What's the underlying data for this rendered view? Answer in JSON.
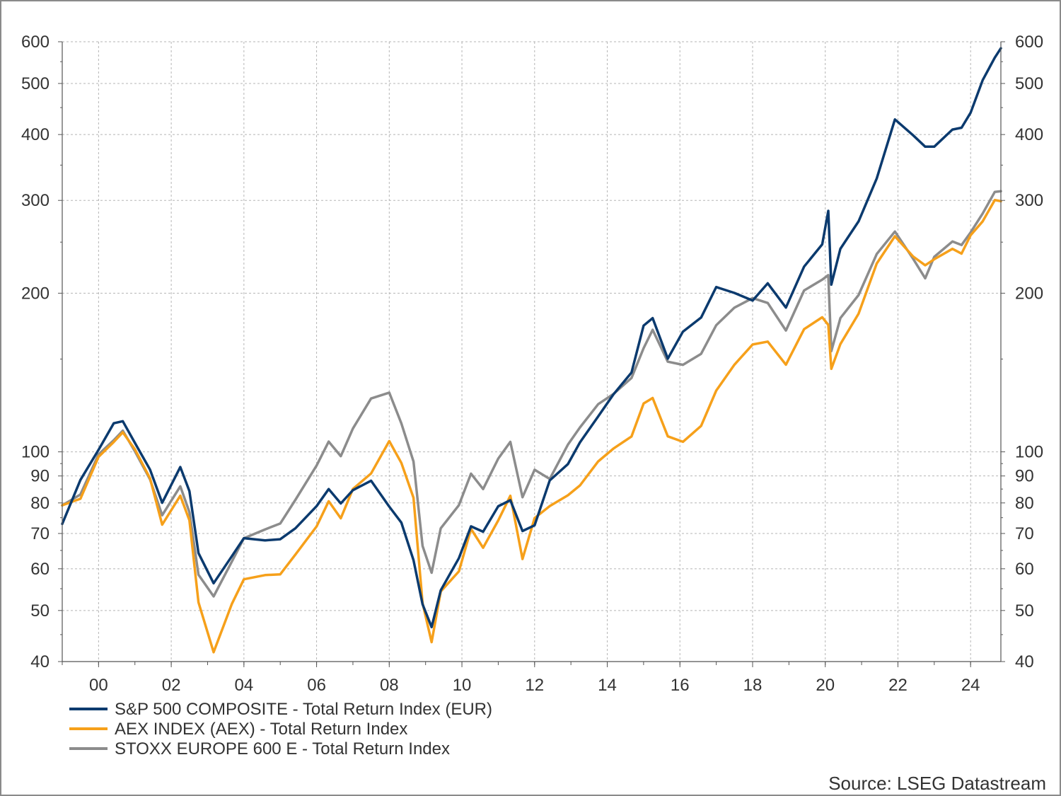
{
  "chart_data": {
    "type": "line",
    "title": "",
    "xlabel": "",
    "ylabel": "",
    "y_scale": "log",
    "ylim": [
      40,
      600
    ],
    "xlim": [
      "1999-01",
      "2024-11"
    ],
    "y_ticks": [
      40,
      50,
      60,
      70,
      80,
      90,
      100,
      200,
      300,
      400,
      500,
      600
    ],
    "y_tick_labels": [
      "40",
      "50",
      "60",
      "70",
      "80",
      "90",
      "100",
      "200",
      "300",
      "400",
      "500",
      "600"
    ],
    "x_ticks": [
      2000,
      2002,
      2004,
      2006,
      2008,
      2010,
      2012,
      2014,
      2016,
      2018,
      2020,
      2022,
      2024
    ],
    "x_tick_labels": [
      "00",
      "02",
      "04",
      "06",
      "08",
      "10",
      "12",
      "14",
      "16",
      "18",
      "20",
      "22",
      "24"
    ],
    "grid": true,
    "legend_position": "bottom-left",
    "source": "Source: LSEG Datastream",
    "series": [
      {
        "name": "S&P 500 COMPOSITE - Total Return Index (EUR)",
        "color": "#0b3a6e",
        "x": [
          "1999-01",
          "1999-07",
          "2000-01",
          "2000-06",
          "2000-09",
          "2001-01",
          "2001-06",
          "2001-10",
          "2002-04",
          "2002-07",
          "2002-10",
          "2003-03",
          "2003-09",
          "2004-01",
          "2004-08",
          "2005-01",
          "2005-06",
          "2006-01",
          "2006-05",
          "2006-09",
          "2007-01",
          "2007-07",
          "2008-01",
          "2008-05",
          "2008-09",
          "2008-12",
          "2009-03",
          "2009-06",
          "2009-12",
          "2010-04",
          "2010-08",
          "2011-01",
          "2011-05",
          "2011-09",
          "2012-01",
          "2012-06",
          "2012-12",
          "2013-04",
          "2013-10",
          "2014-03",
          "2014-09",
          "2015-01",
          "2015-04",
          "2015-09",
          "2016-02",
          "2016-08",
          "2017-01",
          "2017-07",
          "2018-01",
          "2018-06",
          "2018-12",
          "2019-06",
          "2019-12",
          "2020-02",
          "2020-03",
          "2020-06",
          "2020-12",
          "2021-06",
          "2021-12",
          "2022-06",
          "2022-10",
          "2023-01",
          "2023-07",
          "2023-10",
          "2024-01",
          "2024-05",
          "2024-09",
          "2024-11"
        ],
        "values": [
          73,
          88,
          100,
          112,
          113,
          103,
          92,
          80,
          94,
          85,
          65,
          57,
          64,
          69,
          68,
          68,
          71,
          78,
          84,
          79,
          84,
          88,
          79,
          74,
          63,
          52,
          47,
          55,
          63,
          72,
          70,
          78,
          80,
          70,
          72,
          88,
          95,
          105,
          118,
          130,
          143,
          175,
          180,
          150,
          168,
          178,
          203,
          198,
          192,
          208,
          188,
          226,
          250,
          290,
          210,
          245,
          275,
          330,
          425,
          395,
          375,
          375,
          405,
          410,
          440,
          510,
          565,
          590
        ]
      },
      {
        "name": "AEX INDEX (AEX) - Total Return Index",
        "color": "#f6a01a",
        "x": [
          "1999-01",
          "1999-07",
          "2000-01",
          "2000-06",
          "2000-09",
          "2001-01",
          "2001-06",
          "2001-10",
          "2002-04",
          "2002-07",
          "2002-10",
          "2003-03",
          "2003-09",
          "2004-01",
          "2004-08",
          "2005-01",
          "2005-06",
          "2006-01",
          "2006-05",
          "2006-09",
          "2007-01",
          "2007-07",
          "2008-01",
          "2008-05",
          "2008-09",
          "2008-12",
          "2009-03",
          "2009-06",
          "2009-12",
          "2010-04",
          "2010-08",
          "2011-01",
          "2011-05",
          "2011-09",
          "2012-01",
          "2012-06",
          "2012-12",
          "2013-04",
          "2013-10",
          "2014-03",
          "2014-09",
          "2015-01",
          "2015-04",
          "2015-09",
          "2016-02",
          "2016-08",
          "2017-01",
          "2017-07",
          "2018-01",
          "2018-06",
          "2018-12",
          "2019-06",
          "2019-12",
          "2020-02",
          "2020-03",
          "2020-06",
          "2020-12",
          "2021-06",
          "2021-12",
          "2022-06",
          "2022-10",
          "2023-01",
          "2023-07",
          "2023-10",
          "2024-01",
          "2024-05",
          "2024-09",
          "2024-11"
        ],
        "values": [
          80,
          82,
          98,
          104,
          108,
          100,
          88,
          72,
          82,
          74,
          52,
          42,
          52,
          58,
          59,
          59,
          64,
          72,
          80,
          74,
          84,
          90,
          104,
          95,
          82,
          52,
          44,
          55,
          60,
          72,
          66,
          74,
          82,
          62,
          74,
          78,
          82,
          86,
          96,
          102,
          108,
          125,
          128,
          108,
          105,
          112,
          130,
          145,
          158,
          160,
          145,
          170,
          180,
          175,
          145,
          162,
          185,
          230,
          258,
          235,
          225,
          230,
          240,
          235,
          255,
          272,
          300,
          300
        ]
      },
      {
        "name": "STOXX EUROPE 600 E - Total Return Index",
        "color": "#8c8c8c",
        "x": [
          "1999-01",
          "1999-07",
          "2000-01",
          "2000-06",
          "2000-09",
          "2001-01",
          "2001-06",
          "2001-10",
          "2002-04",
          "2002-07",
          "2002-10",
          "2003-03",
          "2003-09",
          "2004-01",
          "2004-08",
          "2005-01",
          "2005-06",
          "2006-01",
          "2006-05",
          "2006-09",
          "2007-01",
          "2007-07",
          "2008-01",
          "2008-05",
          "2008-09",
          "2008-12",
          "2009-03",
          "2009-06",
          "2009-12",
          "2010-04",
          "2010-08",
          "2011-01",
          "2011-05",
          "2011-09",
          "2012-01",
          "2012-06",
          "2012-12",
          "2013-04",
          "2013-10",
          "2014-03",
          "2014-09",
          "2015-01",
          "2015-04",
          "2015-09",
          "2016-02",
          "2016-08",
          "2017-01",
          "2017-07",
          "2018-01",
          "2018-06",
          "2018-12",
          "2019-06",
          "2019-12",
          "2020-02",
          "2020-03",
          "2020-06",
          "2020-12",
          "2021-06",
          "2021-12",
          "2022-06",
          "2022-10",
          "2023-01",
          "2023-07",
          "2023-10",
          "2024-01",
          "2024-05",
          "2024-09",
          "2024-11"
        ],
        "values": [
          80,
          84,
          100,
          106,
          110,
          100,
          88,
          75,
          85,
          76,
          58,
          53,
          62,
          69,
          72,
          74,
          82,
          95,
          105,
          98,
          110,
          125,
          128,
          112,
          95,
          66,
          59,
          72,
          80,
          92,
          86,
          98,
          105,
          82,
          92,
          88,
          102,
          110,
          122,
          128,
          138,
          158,
          172,
          150,
          148,
          155,
          175,
          188,
          195,
          190,
          168,
          200,
          210,
          215,
          155,
          180,
          200,
          240,
          265,
          235,
          215,
          235,
          250,
          245,
          258,
          280,
          308,
          310
        ]
      }
    ]
  }
}
